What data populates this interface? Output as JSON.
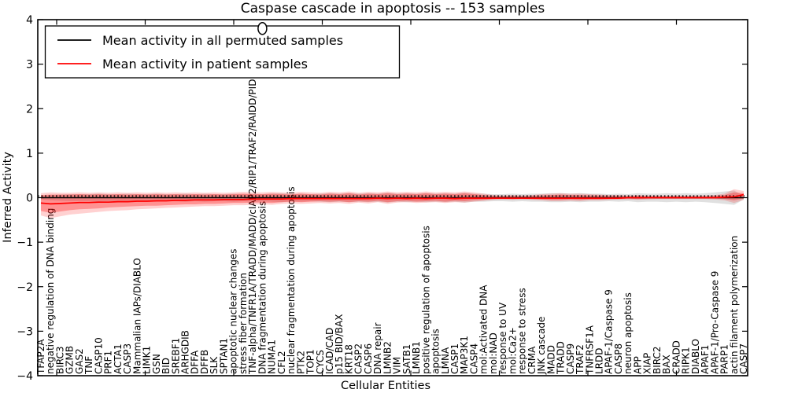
{
  "chart_data": {
    "type": "line",
    "title": "Caspase cascade in apoptosis -- 153 samples",
    "xlabel": "Cellular Entities",
    "ylabel": "Inferred Activity",
    "ylim": [
      -4,
      4
    ],
    "yticks": [
      4,
      3,
      2,
      1,
      0,
      -1,
      -2,
      -3,
      -4
    ],
    "grid": false,
    "legend_position": "upper left",
    "legend": [
      {
        "label": "Mean activity in all permuted samples",
        "color": "#000000"
      },
      {
        "label": "Mean activity in patient samples",
        "color": "#ff0000"
      }
    ],
    "categories": [
      "TFAP2A",
      "negative regulation of DNA binding",
      "BIRC3",
      "GZMB",
      "GAS2",
      "TNF",
      "CASP10",
      "PRF1",
      "ACTA1",
      "CASP3",
      "Mammalian IAPs/DIABLO",
      "LIMK1",
      "GSN",
      "BID",
      "SREBF1",
      "ARHGDIB",
      "DFFA",
      "DFFB",
      "SLK",
      "SPTAN1",
      "apoptotic nuclear changes",
      "stress fiber formation",
      "TNF-alpha/TNFR1A/TRADD/MADD/cIAP2/RIP1/TRAF2/RAIDD/PIDD",
      "DNA fragmentation during apoptosis",
      "NUMA1",
      "CFL2",
      "nuclear fragmentation during apoptosis",
      "PTK2",
      "TOP1",
      "CYCS",
      "ICAD/CAD",
      "p15 BID/BAX",
      "KRT18",
      "CASP2",
      "CASP6",
      "DNA repair",
      "LMNB2",
      "VIM",
      "SATB1",
      "LMNB1",
      "positive regulation of apoptosis",
      "apoptosis",
      "LMNA",
      "CASP1",
      "MAP3K1",
      "CASP4",
      "mol:Activated DNA",
      "mol:NAD",
      "response to UV",
      "mol:Ca2+",
      "response to stress",
      "CRMA",
      "JNK cascade",
      "MADD",
      "TRADD",
      "CASP9",
      "TRAF2",
      "TNFRSF1A",
      "LRDD",
      "APAF-1/Caspase 9",
      "CASP8",
      "neuron apoptosis",
      "APP",
      "XIAP",
      "BIRC2",
      "BAX",
      "CRADD",
      "RIPK1",
      "DIABLO",
      "APAF1",
      "APAF-1/Pro-Caspase 9",
      "PARP1",
      "actin filament polymerization",
      "CASP7"
    ],
    "series": [
      {
        "name": "Mean activity in all permuted samples",
        "color": "#000000",
        "values": [
          0,
          0,
          0,
          0,
          0,
          0,
          0,
          0,
          0,
          0,
          0,
          0,
          0,
          0,
          0,
          0,
          0,
          0,
          0,
          0,
          0,
          0,
          0,
          0,
          0,
          0,
          0,
          0,
          0,
          0,
          0,
          0,
          0,
          0,
          0,
          0,
          0,
          0,
          0,
          0,
          0,
          0,
          0,
          0,
          0,
          0,
          0,
          0,
          0,
          0,
          0,
          0,
          0,
          0,
          0,
          0,
          0,
          0,
          0,
          0,
          0,
          0,
          0,
          0,
          0,
          0,
          0,
          0,
          0,
          0,
          0,
          0,
          0,
          0
        ]
      },
      {
        "name": "Mean activity in patient samples",
        "color": "#ff0000",
        "values": [
          -0.12,
          -0.14,
          -0.13,
          -0.12,
          -0.11,
          -0.11,
          -0.1,
          -0.1,
          -0.09,
          -0.09,
          -0.08,
          -0.08,
          -0.07,
          -0.07,
          -0.06,
          -0.06,
          -0.05,
          -0.05,
          -0.05,
          -0.04,
          -0.04,
          -0.04,
          -0.03,
          -0.03,
          -0.03,
          -0.03,
          -0.02,
          -0.02,
          -0.02,
          -0.02,
          -0.02,
          -0.02,
          -0.02,
          -0.02,
          -0.02,
          -0.01,
          -0.02,
          -0.01,
          -0.02,
          -0.01,
          -0.02,
          -0.01,
          -0.01,
          -0.02,
          -0.01,
          -0.01,
          -0.01,
          -0.01,
          -0.01,
          -0.01,
          -0.01,
          -0.01,
          -0.01,
          -0.01,
          -0.01,
          -0.01,
          -0.01,
          -0.01,
          -0.01,
          -0.01,
          -0.01,
          0,
          0,
          0,
          0,
          0,
          0,
          0,
          0,
          0,
          0,
          0.01,
          0.02,
          0.07
        ]
      }
    ],
    "bands": [
      {
        "name": "permuted-samples-band",
        "color": "#000000",
        "opacity": 0.12,
        "upper": [
          0.04,
          0.06,
          0.07,
          0.08,
          0.08,
          0.08,
          0.09,
          0.08,
          0.08,
          0.09,
          0.08,
          0.08,
          0.09,
          0.08,
          0.08,
          0.09,
          0.08,
          0.09,
          0.08,
          0.08,
          0.09,
          0.08,
          0.09,
          0.08,
          0.09,
          0.1,
          0.08,
          0.09,
          0.08,
          0.09,
          0.1,
          0.09,
          0.1,
          0.09,
          0.1,
          0.09,
          0.11,
          0.09,
          0.1,
          0.09,
          0.1,
          0.09,
          0.1,
          0.09,
          0.11,
          0.09,
          0.09,
          0.08,
          0.08,
          0.09,
          0.08,
          0.09,
          0.09,
          0.1,
          0.1,
          0.09,
          0.1,
          0.09,
          0.09,
          0.08,
          0.09,
          0.08,
          0.1,
          0.09,
          0.09,
          0.1,
          0.09,
          0.1,
          0.09,
          0.1,
          0.12,
          0.14,
          0.16,
          0.04
        ],
        "lower": [
          -0.04,
          -0.06,
          -0.07,
          -0.08,
          -0.08,
          -0.08,
          -0.09,
          -0.08,
          -0.08,
          -0.09,
          -0.08,
          -0.08,
          -0.09,
          -0.08,
          -0.08,
          -0.09,
          -0.08,
          -0.09,
          -0.08,
          -0.08,
          -0.09,
          -0.08,
          -0.09,
          -0.08,
          -0.09,
          -0.1,
          -0.08,
          -0.09,
          -0.08,
          -0.09,
          -0.1,
          -0.09,
          -0.1,
          -0.09,
          -0.1,
          -0.09,
          -0.11,
          -0.09,
          -0.1,
          -0.09,
          -0.1,
          -0.09,
          -0.1,
          -0.09,
          -0.11,
          -0.09,
          -0.09,
          -0.08,
          -0.08,
          -0.09,
          -0.08,
          -0.09,
          -0.09,
          -0.1,
          -0.1,
          -0.09,
          -0.1,
          -0.09,
          -0.09,
          -0.08,
          -0.09,
          -0.08,
          -0.1,
          -0.09,
          -0.09,
          -0.1,
          -0.09,
          -0.1,
          -0.09,
          -0.1,
          -0.12,
          -0.14,
          -0.16,
          -0.04
        ]
      },
      {
        "name": "patient-samples-band-outer",
        "color": "#ff0000",
        "opacity": 0.18,
        "upper": [
          0.1,
          0.12,
          0.11,
          0.11,
          0.12,
          0.11,
          0.12,
          0.11,
          0.12,
          0.11,
          0.12,
          0.11,
          0.12,
          0.11,
          0.12,
          0.11,
          0.12,
          0.11,
          0.12,
          0.11,
          0.12,
          0.13,
          0.12,
          0.12,
          0.13,
          0.12,
          0.11,
          0.13,
          0.12,
          0.11,
          0.13,
          0.12,
          0.14,
          0.11,
          0.13,
          0.12,
          0.14,
          0.12,
          0.13,
          0.12,
          0.14,
          0.12,
          0.13,
          0.12,
          0.14,
          0.12,
          0.09,
          0.06,
          0.05,
          0.06,
          0.05,
          0.06,
          0.08,
          0.09,
          0.1,
          0.09,
          0.09,
          0.08,
          0.07,
          0.06,
          0.06,
          0.05,
          0.06,
          0.05,
          0.05,
          0.04,
          0.05,
          0.04,
          0.05,
          0.05,
          0.06,
          0.09,
          0.19,
          0.15
        ],
        "lower": [
          -0.4,
          -0.46,
          -0.42,
          -0.38,
          -0.36,
          -0.34,
          -0.32,
          -0.3,
          -0.29,
          -0.28,
          -0.26,
          -0.25,
          -0.24,
          -0.23,
          -0.22,
          -0.21,
          -0.2,
          -0.19,
          -0.19,
          -0.18,
          -0.17,
          -0.17,
          -0.16,
          -0.15,
          -0.16,
          -0.14,
          -0.13,
          -0.14,
          -0.13,
          -0.12,
          -0.13,
          -0.12,
          -0.14,
          -0.11,
          -0.13,
          -0.1,
          -0.14,
          -0.11,
          -0.1,
          -0.12,
          -0.11,
          -0.1,
          -0.12,
          -0.1,
          -0.11,
          -0.09,
          -0.07,
          -0.05,
          -0.04,
          -0.05,
          -0.04,
          -0.05,
          -0.06,
          -0.08,
          -0.08,
          -0.07,
          -0.08,
          -0.06,
          -0.06,
          -0.05,
          -0.04,
          -0.04,
          -0.05,
          -0.04,
          -0.03,
          -0.03,
          -0.03,
          -0.03,
          -0.03,
          -0.03,
          -0.04,
          -0.06,
          -0.12,
          -0.05
        ]
      },
      {
        "name": "patient-samples-band-inner",
        "color": "#ff0000",
        "opacity": 0.3,
        "upper": [
          0.06,
          0.07,
          0.07,
          0.07,
          0.08,
          0.07,
          0.08,
          0.07,
          0.08,
          0.07,
          0.08,
          0.07,
          0.08,
          0.07,
          0.08,
          0.07,
          0.08,
          0.07,
          0.08,
          0.07,
          0.08,
          0.09,
          0.08,
          0.08,
          0.09,
          0.08,
          0.07,
          0.09,
          0.08,
          0.07,
          0.09,
          0.08,
          0.1,
          0.07,
          0.09,
          0.08,
          0.1,
          0.08,
          0.09,
          0.08,
          0.1,
          0.08,
          0.09,
          0.08,
          0.1,
          0.08,
          0.06,
          0.04,
          0.03,
          0.04,
          0.03,
          0.04,
          0.05,
          0.06,
          0.07,
          0.06,
          0.06,
          0.05,
          0.05,
          0.04,
          0.04,
          0.03,
          0.04,
          0.03,
          0.03,
          0.03,
          0.03,
          0.03,
          0.03,
          0.03,
          0.04,
          0.06,
          0.12,
          0.1
        ],
        "lower": [
          -0.3,
          -0.34,
          -0.31,
          -0.28,
          -0.26,
          -0.25,
          -0.24,
          -0.22,
          -0.21,
          -0.2,
          -0.19,
          -0.18,
          -0.18,
          -0.17,
          -0.16,
          -0.15,
          -0.15,
          -0.14,
          -0.14,
          -0.13,
          -0.12,
          -0.12,
          -0.11,
          -0.11,
          -0.12,
          -0.1,
          -0.09,
          -0.1,
          -0.09,
          -0.08,
          -0.09,
          -0.08,
          -0.1,
          -0.08,
          -0.09,
          -0.07,
          -0.1,
          -0.08,
          -0.07,
          -0.09,
          -0.08,
          -0.07,
          -0.09,
          -0.07,
          -0.08,
          -0.06,
          -0.05,
          -0.03,
          -0.02,
          -0.03,
          -0.02,
          -0.03,
          -0.04,
          -0.05,
          -0.05,
          -0.04,
          -0.05,
          -0.04,
          -0.04,
          -0.03,
          -0.03,
          -0.02,
          -0.03,
          -0.02,
          -0.02,
          -0.02,
          -0.02,
          -0.02,
          -0.02,
          -0.02,
          -0.02,
          -0.03,
          -0.06,
          -0.02
        ]
      }
    ],
    "annotations": [
      {
        "type": "clipped-circle-marker",
        "x_index": 23,
        "value": 3.8
      }
    ]
  }
}
